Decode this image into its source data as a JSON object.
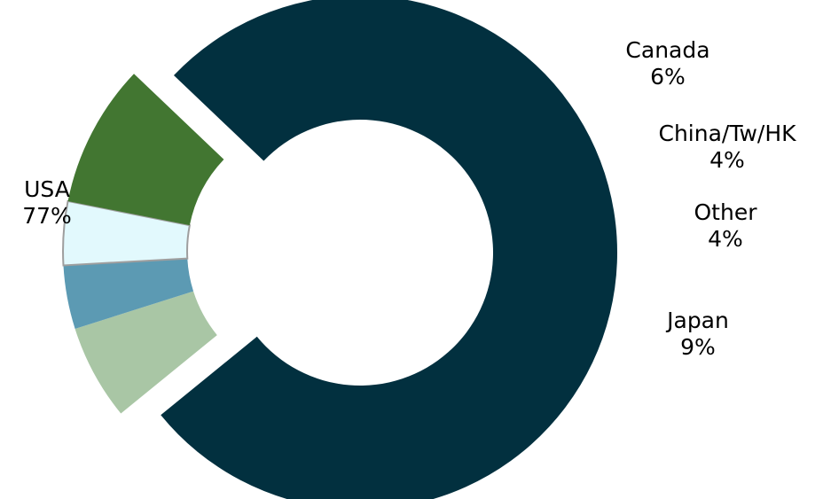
{
  "chart_data": {
    "type": "pie",
    "variant": "donut",
    "legend": "none",
    "slices": [
      {
        "label": "USA",
        "value": 77,
        "value_label": "77%",
        "color": "#02303F",
        "exploded": false
      },
      {
        "label": "Canada",
        "value": 6,
        "value_label": "6%",
        "color": "#A9C6A5",
        "exploded": true
      },
      {
        "label": "China/Tw/HK",
        "value": 4,
        "value_label": "4%",
        "color": "#5C9AB3",
        "exploded": true
      },
      {
        "label": "Other",
        "value": 4,
        "value_label": "4%",
        "color": "#E2F9FD",
        "exploded": true
      },
      {
        "label": "Japan",
        "value": 9,
        "value_label": "9%",
        "color": "#427631",
        "exploded": true
      }
    ]
  }
}
